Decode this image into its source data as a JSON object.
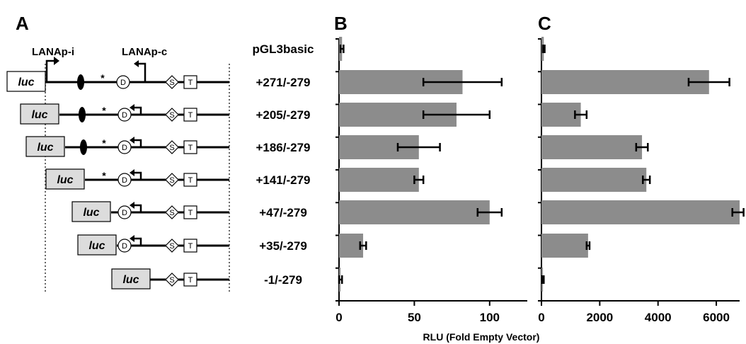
{
  "panels": {
    "a": "A",
    "b": "B",
    "c": "C"
  },
  "promoters": {
    "intermediate": "LANAp-i",
    "constitutive": "LANAp-c"
  },
  "construct_rows": [
    {
      "label": "pGL3basic",
      "luc": "",
      "elements": []
    },
    {
      "label": "+271/-279",
      "luc": "luc",
      "luc_style": "white",
      "elements": [
        "oval",
        "star",
        "D",
        "arrow",
        "S",
        "T"
      ]
    },
    {
      "label": "+205/-279",
      "luc": "luc",
      "luc_style": "gray",
      "elements": [
        "oval",
        "star",
        "D",
        "arrow",
        "S",
        "T"
      ]
    },
    {
      "label": "+186/-279",
      "luc": "luc",
      "luc_style": "gray",
      "elements": [
        "oval",
        "star",
        "D",
        "arrow",
        "S",
        "T"
      ]
    },
    {
      "label": "+141/-279",
      "luc": "luc",
      "luc_style": "gray",
      "elements": [
        "star",
        "D",
        "arrow",
        "S",
        "T"
      ]
    },
    {
      "label": "+47/-279",
      "luc": "luc",
      "luc_style": "gray",
      "elements": [
        "D",
        "arrow",
        "S",
        "T"
      ]
    },
    {
      "label": "+35/-279",
      "luc": "luc",
      "luc_style": "gray",
      "elements": [
        "D",
        "arrow",
        "S",
        "T"
      ]
    },
    {
      "label": "-1/-279",
      "luc": "luc",
      "luc_style": "gray",
      "elements": [
        "S",
        "T"
      ]
    }
  ],
  "symbols": {
    "d": "D",
    "s": "S",
    "t": "T"
  },
  "chart_data": [
    {
      "type": "bar",
      "orientation": "horizontal",
      "panel": "B",
      "categories": [
        "pGL3basic",
        "+271/-279",
        "+205/-279",
        "+186/-279",
        "+141/-279",
        "+47/-279",
        "+35/-279",
        "-1/-279"
      ],
      "values": [
        2,
        82,
        78,
        53,
        53,
        100,
        16,
        1
      ],
      "errors": [
        1,
        26,
        22,
        14,
        3,
        8,
        2,
        1
      ],
      "xlim": [
        0,
        125
      ],
      "xticks": [
        0,
        50,
        100
      ],
      "bar_color": "#8c8c8c"
    },
    {
      "type": "bar",
      "orientation": "horizontal",
      "panel": "C",
      "categories": [
        "pGL3basic",
        "+271/-279",
        "+205/-279",
        "+186/-279",
        "+141/-279",
        "+47/-279",
        "+35/-279",
        "-1/-279"
      ],
      "values": [
        80,
        5750,
        1350,
        3450,
        3600,
        6800,
        1600,
        50
      ],
      "errors": [
        30,
        700,
        200,
        200,
        120,
        250,
        50,
        30
      ],
      "xlim": [
        0,
        6800
      ],
      "xticks": [
        0,
        2000,
        4000,
        6000
      ],
      "bar_color": "#8c8c8c"
    }
  ],
  "xlabel": "RLU (Fold Empty Vector)"
}
